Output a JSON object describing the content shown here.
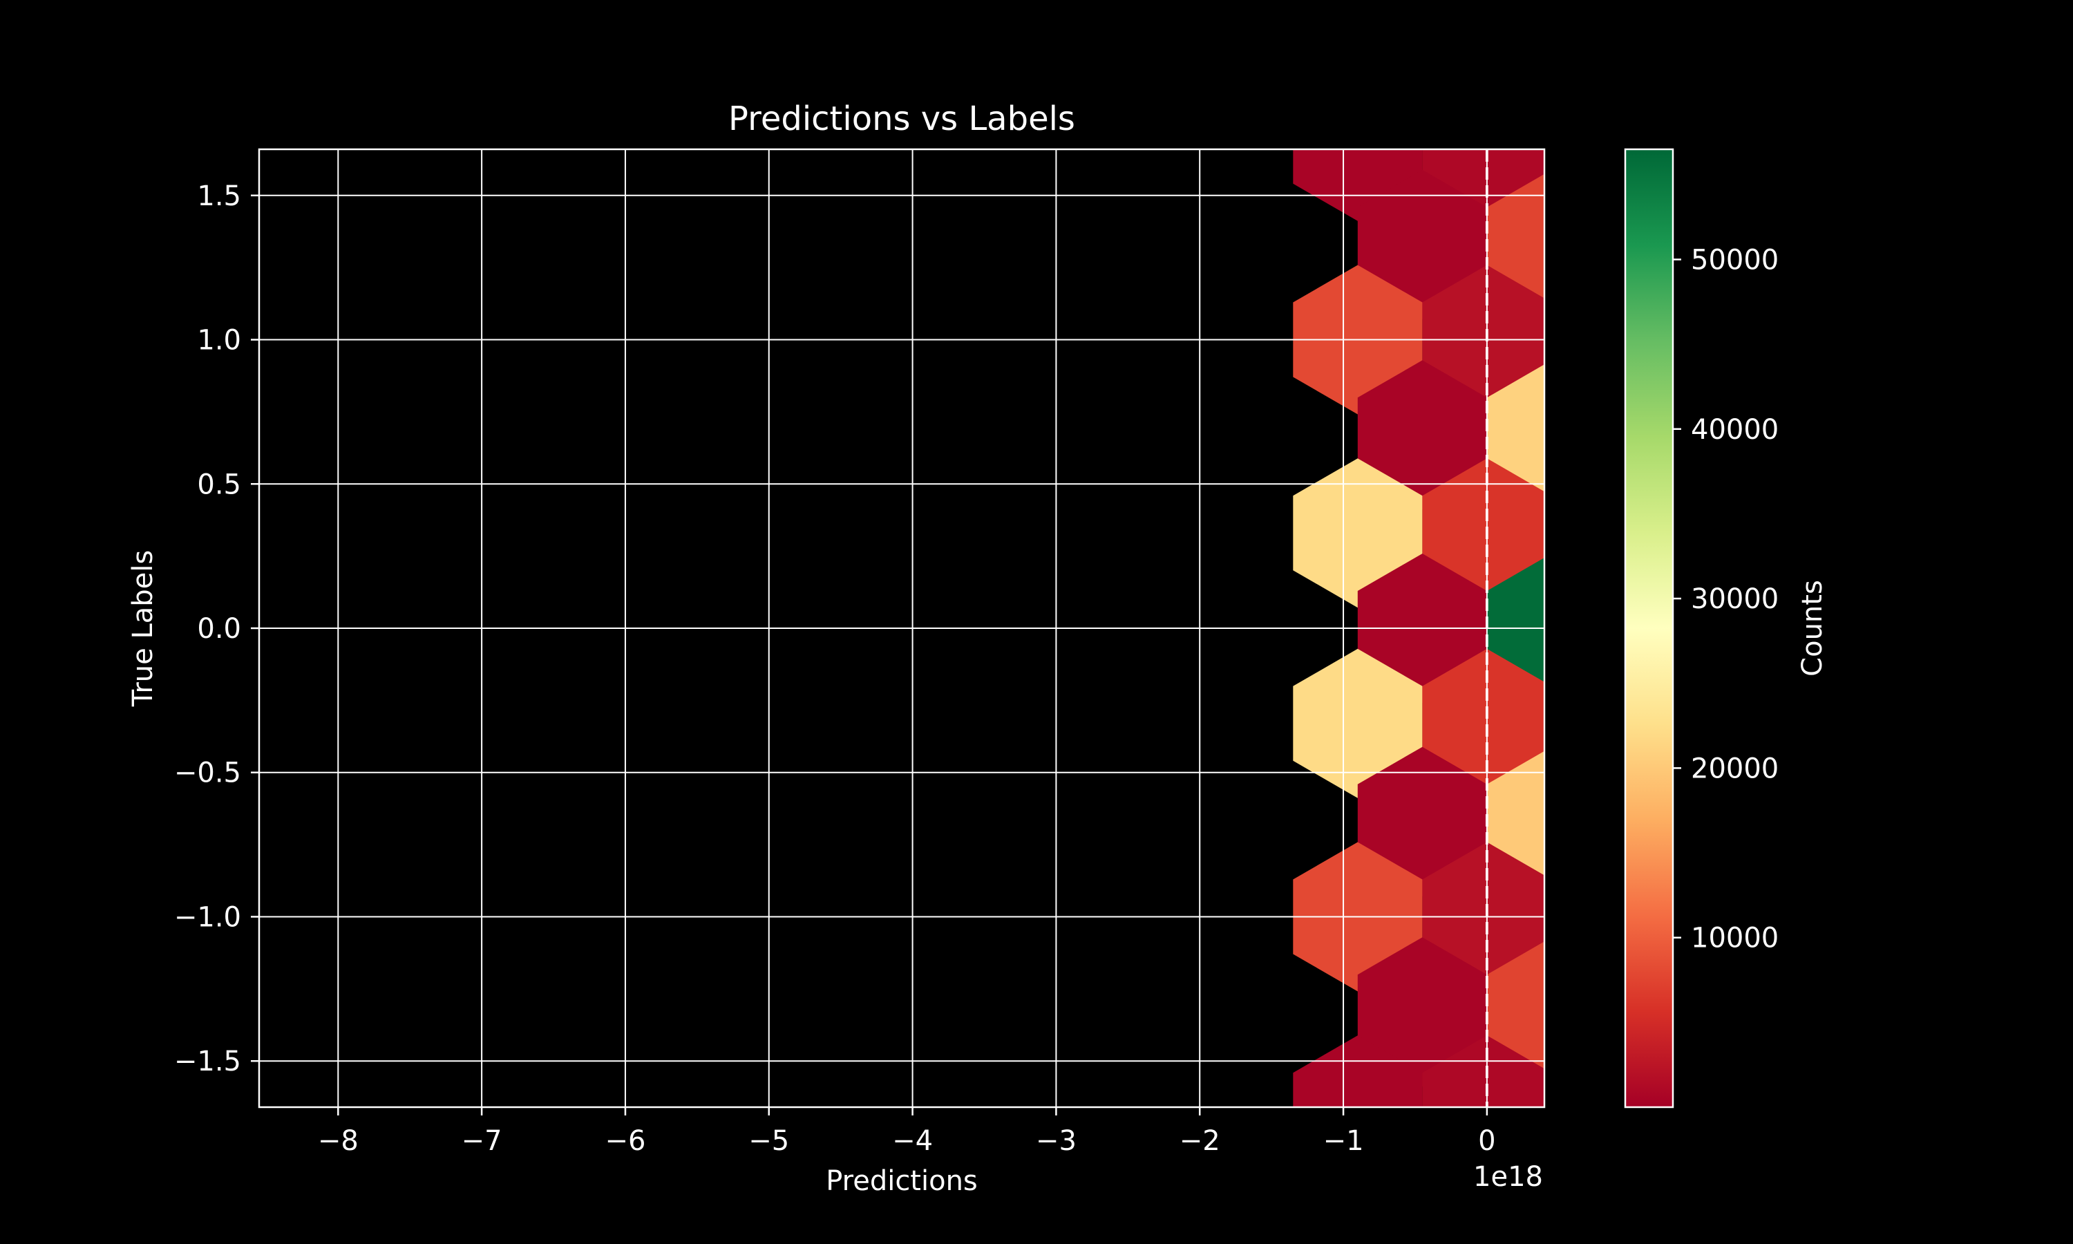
{
  "chart_data": {
    "type": "hexbin",
    "title": "Predictions vs Labels",
    "xlabel": "Predictions",
    "ylabel": "True Labels",
    "x_offset_label": "1e18",
    "xlim": [
      -8.55,
      0.4
    ],
    "ylim": [
      -1.66,
      1.66
    ],
    "xticks": [
      -8,
      -7,
      -6,
      -5,
      -4,
      -3,
      -2,
      -1,
      0
    ],
    "xtick_labels": [
      "−8",
      "−7",
      "−6",
      "−5",
      "−4",
      "−3",
      "−2",
      "−1",
      "0"
    ],
    "yticks": [
      -1.5,
      -1.0,
      -0.5,
      0.0,
      0.5,
      1.0,
      1.5
    ],
    "ytick_labels": [
      "−1.5",
      "−1.0",
      "−0.5",
      "0.0",
      "0.5",
      "1.0",
      "1.5"
    ],
    "grid": true,
    "reference_line": {
      "x": 0,
      "style": "dashed",
      "color": "#ffffff"
    },
    "colormap": "RdYlGn",
    "colorbar": {
      "label": "Counts",
      "range": [
        0,
        56500
      ],
      "ticks": [
        10000,
        20000,
        30000,
        40000,
        50000
      ],
      "tick_labels": [
        "10000",
        "20000",
        "30000",
        "40000",
        "50000"
      ]
    },
    "hexbin": {
      "hex_width_x": 0.9,
      "cells": [
        {
          "x": -0.9,
          "y": 1.67,
          "count": 500
        },
        {
          "x": 0.0,
          "y": 1.67,
          "count": 1000
        },
        {
          "x": -0.45,
          "y": 1.33,
          "count": 500
        },
        {
          "x": 0.45,
          "y": 1.33,
          "count": 7500
        },
        {
          "x": -0.9,
          "y": 1.0,
          "count": 8000
        },
        {
          "x": 0.0,
          "y": 1.0,
          "count": 2000
        },
        {
          "x": -0.45,
          "y": 0.67,
          "count": 500
        },
        {
          "x": 0.45,
          "y": 0.67,
          "count": 21000
        },
        {
          "x": -0.9,
          "y": 0.33,
          "count": 22000
        },
        {
          "x": 0.0,
          "y": 0.33,
          "count": 6000
        },
        {
          "x": -0.45,
          "y": 0.0,
          "count": 500
        },
        {
          "x": 0.45,
          "y": 0.0,
          "count": 56000
        },
        {
          "x": -0.9,
          "y": -0.33,
          "count": 22000
        },
        {
          "x": 0.0,
          "y": -0.33,
          "count": 6000
        },
        {
          "x": -0.45,
          "y": -0.67,
          "count": 500
        },
        {
          "x": 0.45,
          "y": -0.67,
          "count": 20000
        },
        {
          "x": -0.9,
          "y": -1.0,
          "count": 8000
        },
        {
          "x": 0.0,
          "y": -1.0,
          "count": 2000
        },
        {
          "x": -0.45,
          "y": -1.33,
          "count": 500
        },
        {
          "x": 0.45,
          "y": -1.33,
          "count": 7500
        },
        {
          "x": -0.9,
          "y": -1.67,
          "count": 500
        },
        {
          "x": 0.0,
          "y": -1.67,
          "count": 1000
        }
      ]
    }
  }
}
